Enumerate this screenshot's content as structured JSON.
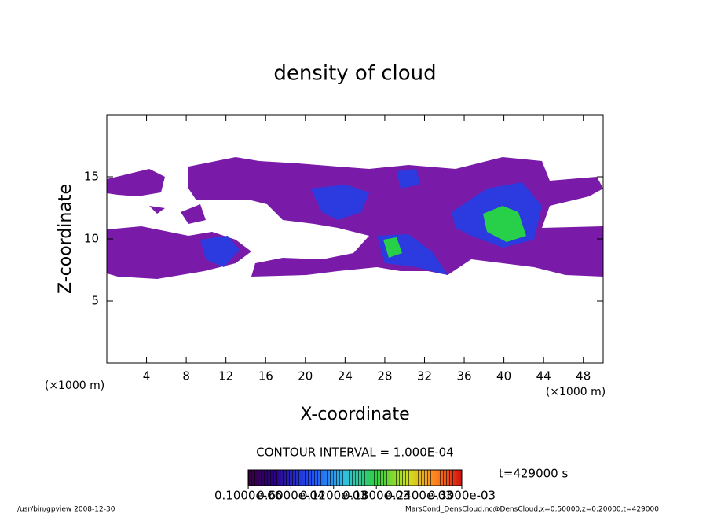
{
  "chart_data": {
    "type": "contour",
    "title": "density of cloud",
    "x_label": "X-coordinate",
    "y_label": "Z-coordinate",
    "x_unit": "(×1000 m)",
    "y_unit": "(×1000 m)",
    "xlim": [
      0,
      50
    ],
    "ylim": [
      0,
      20
    ],
    "xticks": [
      4,
      8,
      12,
      16,
      20,
      24,
      28,
      32,
      36,
      40,
      44,
      48
    ],
    "yticks": [
      5,
      10,
      15
    ],
    "contour_interval": "CONTOUR INTERVAL = 1.000E-04",
    "time": "t=429000 s",
    "colorbar": {
      "clim": [
        0,
        0.0003
      ],
      "ticks": [
        {
          "value": 1e-07,
          "label": "0.1000e-06"
        },
        {
          "value": 6e-05,
          "label": "0.6000e-04"
        },
        {
          "value": 0.00012,
          "label": "0.1200e-03"
        },
        {
          "value": 0.00018,
          "label": "0.1800e-03"
        },
        {
          "value": 0.00024,
          "label": "0.2400e-03"
        },
        {
          "value": 0.0003,
          "label": "0.3000e-03"
        }
      ]
    },
    "footer_left": "/usr/bin/gpview  2008-12-30",
    "footer_right": "MarsCond_DensCloud.nc@DensCloud,x=0:50000,z=0:20000,t=429000"
  }
}
